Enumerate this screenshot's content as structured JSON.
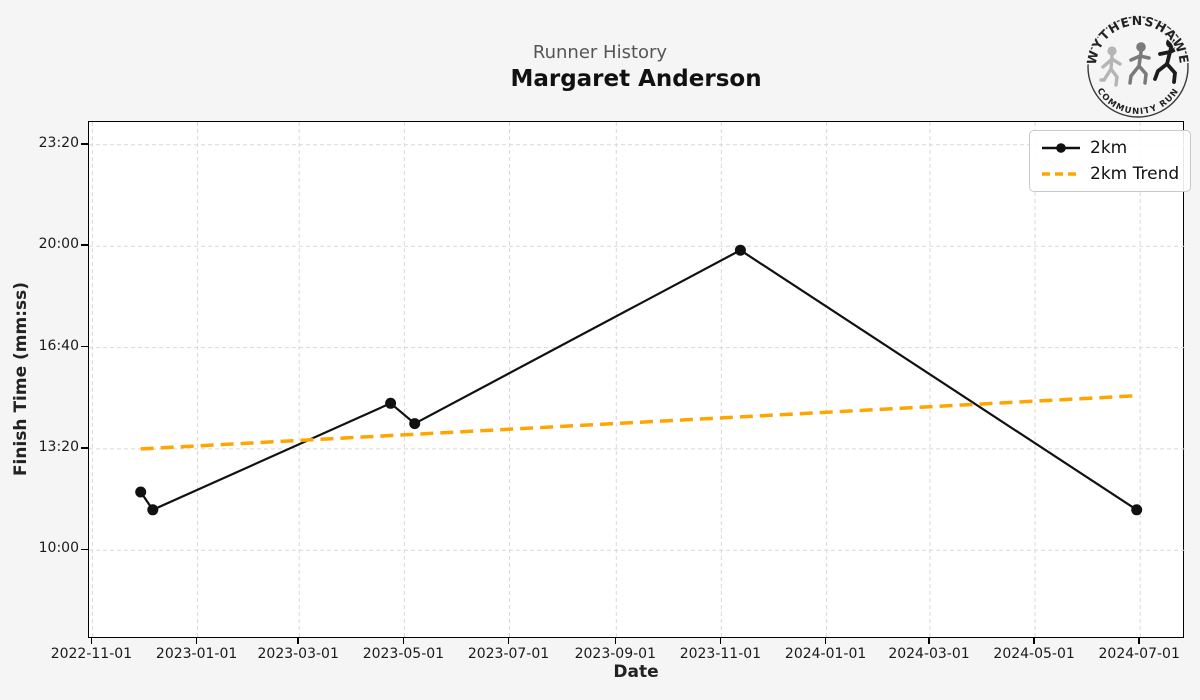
{
  "colors": {
    "figure_bg": "#f5f5f5",
    "plot_bg": "#ffffff",
    "grid": "#d8d8d8",
    "spine": "#000000",
    "suptitle_text": "#555555",
    "title_text": "#111111",
    "series_2km": "#111111",
    "series_trend": "#FFA500"
  },
  "logo": {
    "top_text": "WYTHENSHAWE",
    "bottom_text": "COMMUNITY RUN"
  },
  "chart_data": {
    "type": "line",
    "suptitle": "Runner History",
    "title": "Margaret Anderson",
    "xlabel": "Date",
    "ylabel": "Finish Time (mm:ss)",
    "grid": true,
    "legend_position": "upper right",
    "x_tick_labels": [
      "2022-11-01",
      "2023-01-01",
      "2023-03-01",
      "2023-05-01",
      "2023-07-01",
      "2023-09-01",
      "2023-11-01",
      "2024-01-01",
      "2024-03-01",
      "2024-05-01",
      "2024-07-01"
    ],
    "y_ticks": [
      {
        "label": "10:00",
        "seconds": 600
      },
      {
        "label": "13:20",
        "seconds": 800
      },
      {
        "label": "16:40",
        "seconds": 1000
      },
      {
        "label": "20:00",
        "seconds": 1200
      },
      {
        "label": "23:20",
        "seconds": 1400
      }
    ],
    "xlim": [
      "2022-10-30",
      "2024-07-27"
    ],
    "ylim_seconds": [
      425,
      1445
    ],
    "series": [
      {
        "name": "2km",
        "style": "solid-line-with-markers",
        "color": "#111111",
        "line_width": 2.2,
        "marker_radius": 5.5,
        "points": [
          {
            "date": "2022-11-29",
            "time": "11:55",
            "seconds": 715
          },
          {
            "date": "2022-12-06",
            "time": "11:20",
            "seconds": 680
          },
          {
            "date": "2023-04-23",
            "time": "14:50",
            "seconds": 890
          },
          {
            "date": "2023-05-07",
            "time": "14:10",
            "seconds": 850
          },
          {
            "date": "2023-11-12",
            "time": "19:52",
            "seconds": 1192
          },
          {
            "date": "2024-06-29",
            "time": "11:20",
            "seconds": 680
          }
        ]
      },
      {
        "name": "2km Trend",
        "style": "dashed-line",
        "color": "#FFA500",
        "line_width": 3.5,
        "dash": [
          13,
          7
        ],
        "points": [
          {
            "date": "2022-11-29",
            "time": "13:20",
            "seconds": 800
          },
          {
            "date": "2024-06-29",
            "time": "15:05",
            "seconds": 905
          }
        ]
      }
    ]
  }
}
